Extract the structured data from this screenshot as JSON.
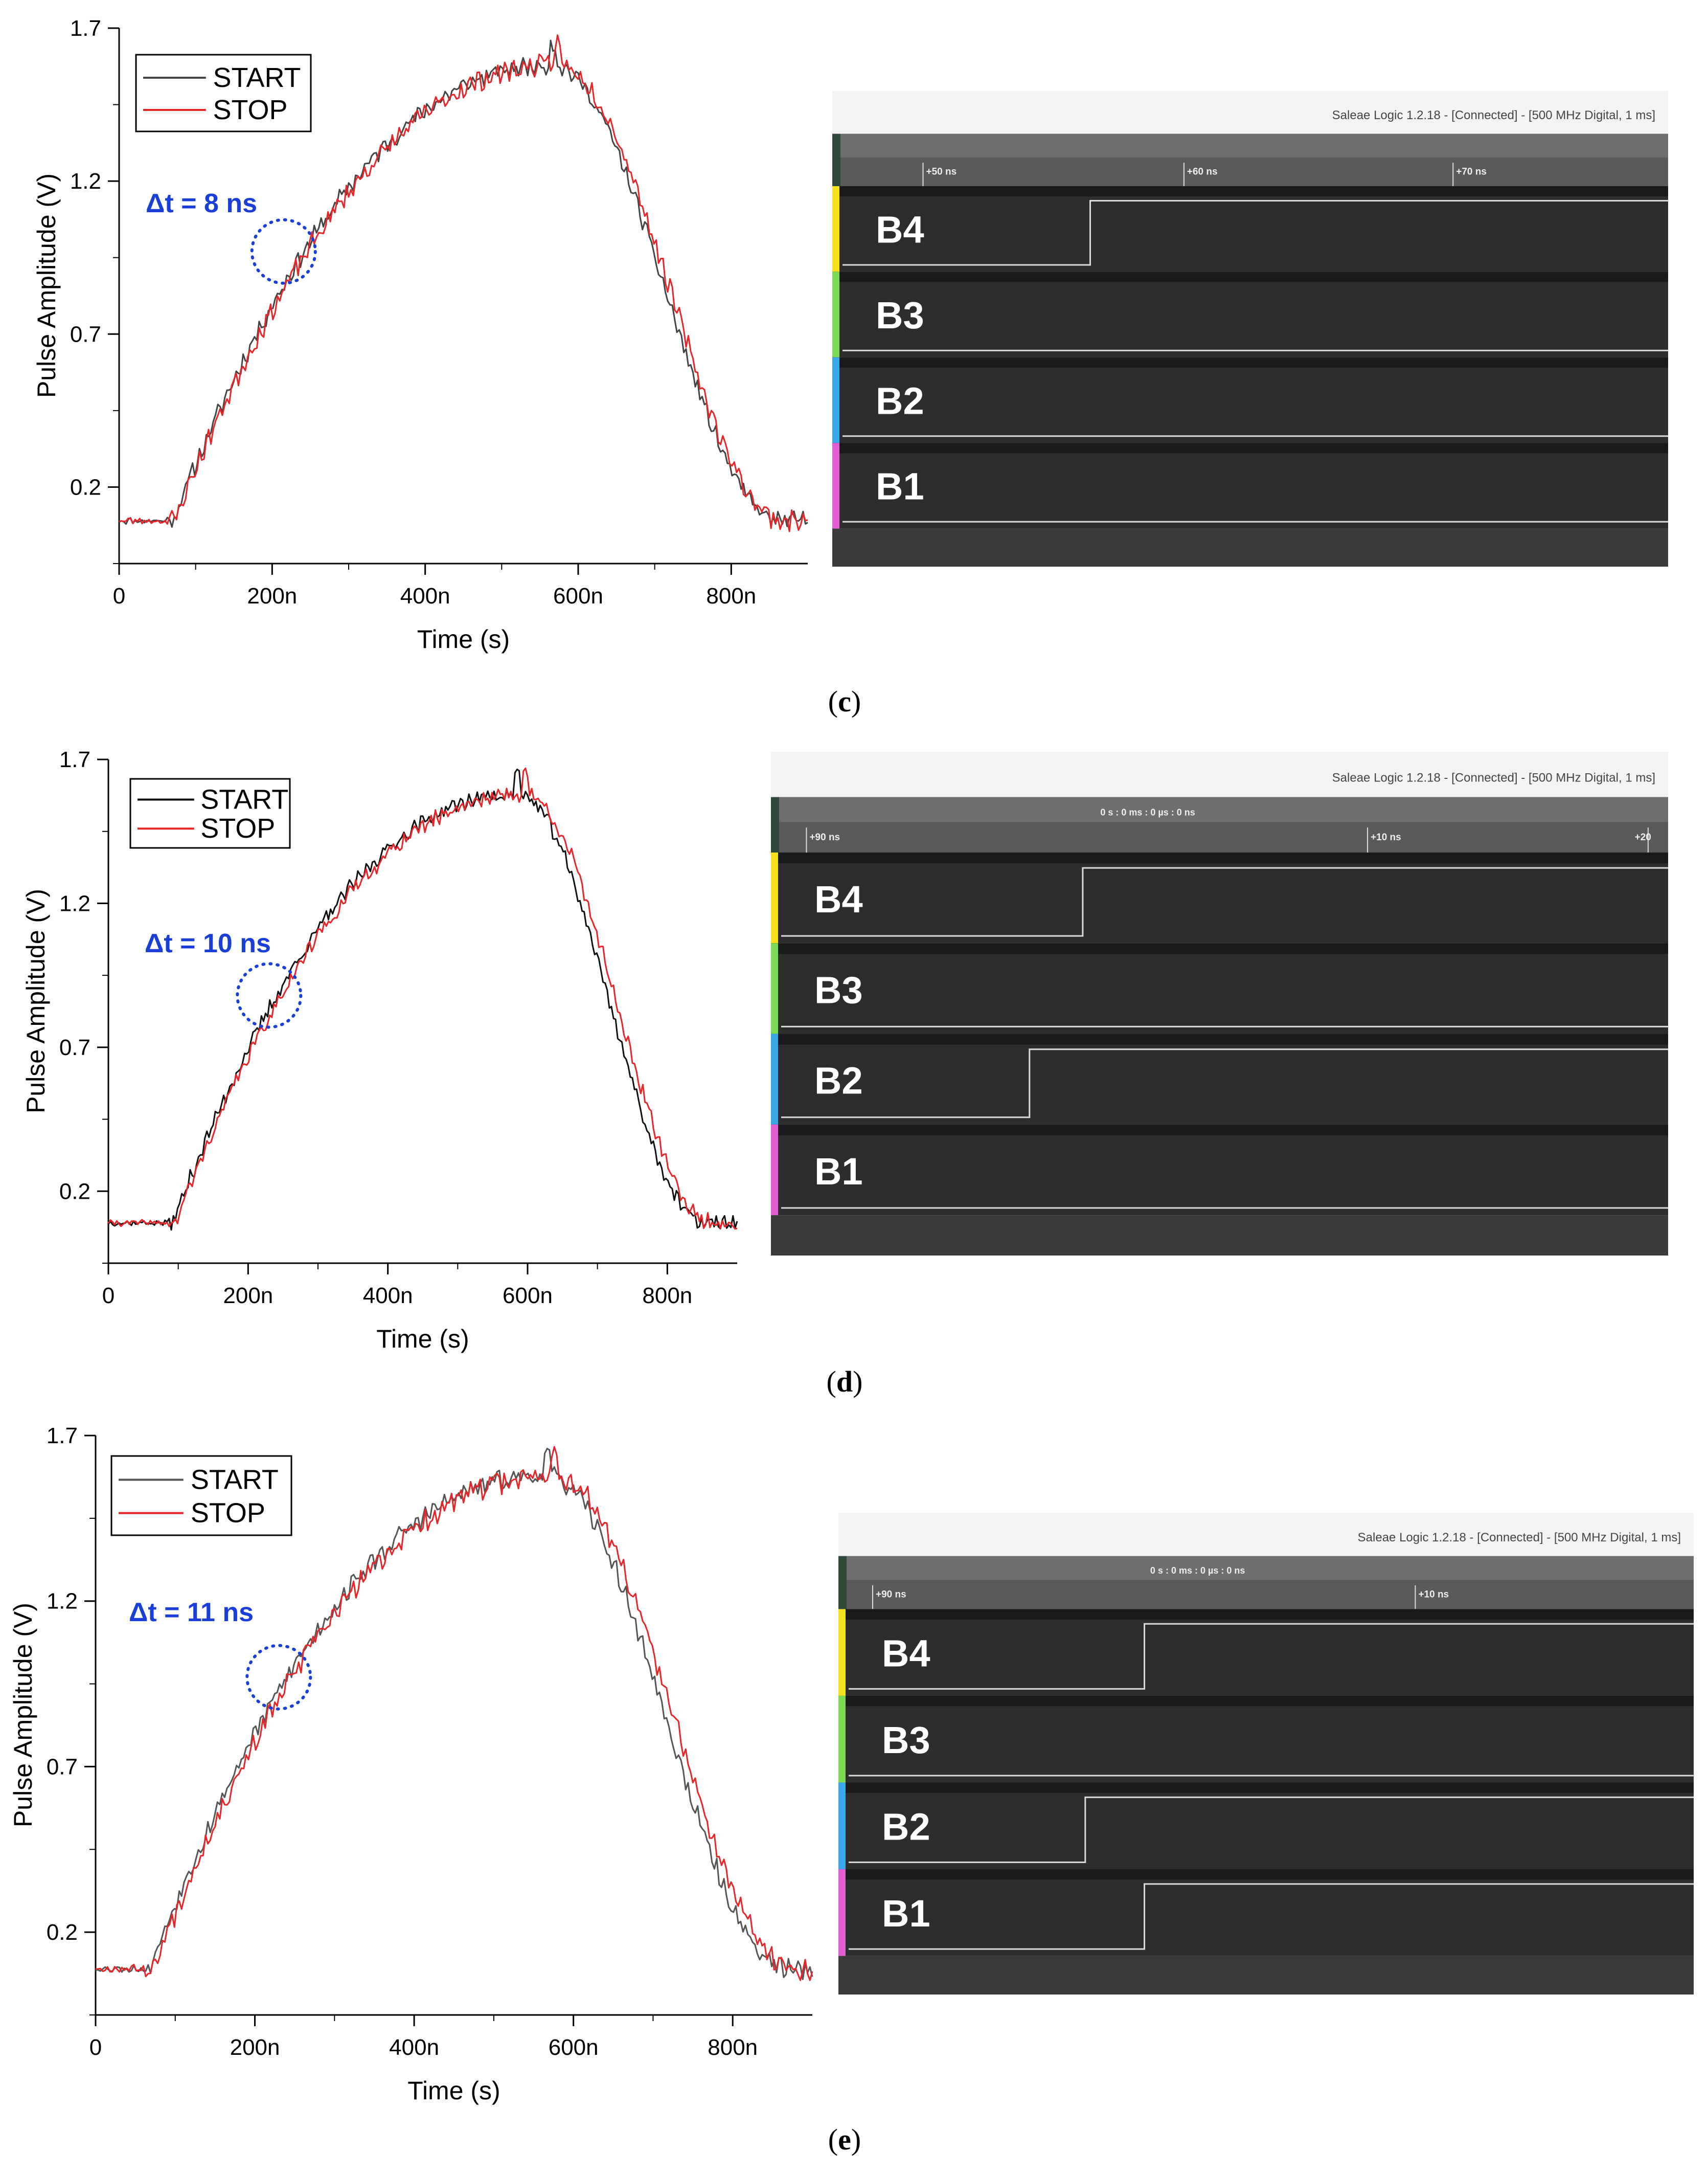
{
  "chart_data": [
    {
      "type": "line",
      "caption": "c",
      "xlabel": "Time (s)",
      "ylabel": "Pulse Amplitude (V)",
      "xlim": [
        0,
        900
      ],
      "ylim": [
        -0.05,
        1.7
      ],
      "xticks": [
        0,
        200,
        400,
        600,
        800
      ],
      "xticklabels": [
        "0",
        "200n",
        "400n",
        "600n",
        "800n"
      ],
      "yticks": [
        0.2,
        0.7,
        1.2,
        1.7
      ],
      "yticklabels": [
        "0.2",
        "0.7",
        "1.2",
        "1.7"
      ],
      "legend": [
        "START",
        "STOP"
      ],
      "annotation": "Δt = 8 ns",
      "annotation_ellipse": {
        "x": 215,
        "y": 0.97
      },
      "series": [
        {
          "name": "START",
          "color": "#444444",
          "shift": 0,
          "onset": 70,
          "peak_t": 565,
          "fall_end": 865,
          "noise": 0.025,
          "seed": 11
        },
        {
          "name": "STOP",
          "color": "#e8262a",
          "shift": 8,
          "onset": 72,
          "peak_t": 573,
          "fall_end": 870,
          "noise": 0.028,
          "seed": 23
        }
      ],
      "logic": {
        "title": "Saleae Logic 1.2.18 - [Connected] - [500 MHz Digital, 1 ms]",
        "cursor_text": "",
        "ticks": [
          "+50 ns",
          "+60 ns",
          "+70 ns"
        ],
        "channels": [
          {
            "label": "B4",
            "color": "#f5e21c",
            "edge": 0.3
          },
          {
            "label": "B3",
            "color": "#7ed957",
            "edge": null
          },
          {
            "label": "B2",
            "color": "#3aa8e8",
            "edge": null
          },
          {
            "label": "B1",
            "color": "#e15ed3",
            "edge": null
          }
        ]
      }
    },
    {
      "type": "line",
      "caption": "d",
      "xlabel": "Time (s)",
      "ylabel": "Pulse Amplitude (V)",
      "xlim": [
        0,
        900
      ],
      "ylim": [
        -0.05,
        1.7
      ],
      "xticks": [
        0,
        200,
        400,
        600,
        800
      ],
      "xticklabels": [
        "0",
        "200n",
        "400n",
        "600n",
        "800n"
      ],
      "yticks": [
        0.2,
        0.7,
        1.2,
        1.7
      ],
      "yticklabels": [
        "0.2",
        "0.7",
        "1.2",
        "1.7"
      ],
      "legend": [
        "START",
        "STOP"
      ],
      "annotation": "Δt = 10 ns",
      "annotation_ellipse": {
        "x": 230,
        "y": 0.88
      },
      "series": [
        {
          "name": "START",
          "color": "#111111",
          "shift": 0,
          "onset": 92,
          "peak_t": 585,
          "fall_end": 855,
          "noise": 0.022,
          "seed": 37
        },
        {
          "name": "STOP",
          "color": "#e8262a",
          "shift": 10,
          "onset": 96,
          "peak_t": 595,
          "fall_end": 865,
          "noise": 0.024,
          "seed": 41
        }
      ],
      "logic": {
        "title": "Saleae Logic 1.2.18 - [Connected] - [500 MHz Digital, 1 ms]",
        "cursor_text": "0 s : 0 ms : 0 µs : 0 ns",
        "ticks": [
          "+90 ns",
          "+10 ns",
          "+20"
        ],
        "channels": [
          {
            "label": "B4",
            "color": "#f5e21c",
            "edge": 0.34
          },
          {
            "label": "B3",
            "color": "#7ed957",
            "edge": null
          },
          {
            "label": "B2",
            "color": "#3aa8e8",
            "edge": 0.28
          },
          {
            "label": "B1",
            "color": "#e15ed3",
            "edge": null
          }
        ]
      }
    },
    {
      "type": "line",
      "caption": "e",
      "xlabel": "Time (s)",
      "ylabel": "Pulse Amplitude (V)",
      "xlim": [
        0,
        900
      ],
      "ylim": [
        -0.05,
        1.7
      ],
      "xticks": [
        0,
        200,
        400,
        600,
        800
      ],
      "xticklabels": [
        "0",
        "200n",
        "400n",
        "600n",
        "800n"
      ],
      "yticks": [
        0.2,
        0.7,
        1.2,
        1.7
      ],
      "yticklabels": [
        "0.2",
        "0.7",
        "1.2",
        "1.7"
      ],
      "legend": [
        "START",
        "STOP"
      ],
      "annotation": "Δt = 11 ns",
      "annotation_ellipse": {
        "x": 230,
        "y": 0.97
      },
      "series": [
        {
          "name": "START",
          "color": "#555555",
          "shift": 0,
          "onset": 68,
          "peak_t": 565,
          "fall_end": 870,
          "noise": 0.025,
          "seed": 53
        },
        {
          "name": "STOP",
          "color": "#e8262a",
          "shift": 11,
          "onset": 72,
          "peak_t": 575,
          "fall_end": 880,
          "noise": 0.028,
          "seed": 67
        }
      ],
      "logic": {
        "title": "Saleae Logic 1.2.18 - [Connected] - [500 MHz Digital, 1 ms]",
        "cursor_text": "0 s : 0 ms : 0 µs : 0 ns",
        "ticks": [
          "+90 ns",
          "+10 ns"
        ],
        "channels": [
          {
            "label": "B4",
            "color": "#f5e21c",
            "edge": 0.35
          },
          {
            "label": "B3",
            "color": "#7ed957",
            "edge": null
          },
          {
            "label": "B2",
            "color": "#3aa8e8",
            "edge": 0.28
          },
          {
            "label": "B1",
            "color": "#e15ed3",
            "edge": 0.35
          }
        ]
      }
    }
  ]
}
